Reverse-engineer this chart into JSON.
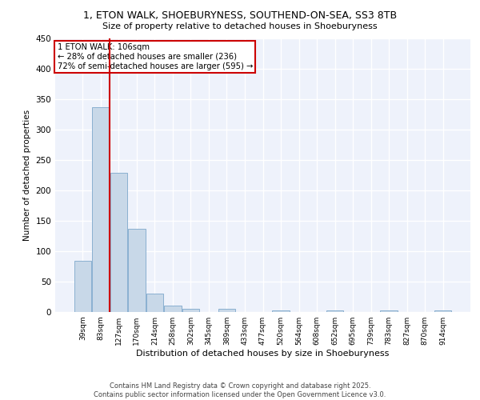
{
  "title_line1": "1, ETON WALK, SHOEBURYNESS, SOUTHEND-ON-SEA, SS3 8TB",
  "title_line2": "Size of property relative to detached houses in Shoeburyness",
  "xlabel": "Distribution of detached houses by size in Shoeburyness",
  "ylabel": "Number of detached properties",
  "categories": [
    "39sqm",
    "83sqm",
    "127sqm",
    "170sqm",
    "214sqm",
    "258sqm",
    "302sqm",
    "345sqm",
    "389sqm",
    "433sqm",
    "477sqm",
    "520sqm",
    "564sqm",
    "608sqm",
    "652sqm",
    "695sqm",
    "739sqm",
    "783sqm",
    "827sqm",
    "870sqm",
    "914sqm"
  ],
  "values": [
    84,
    337,
    229,
    136,
    30,
    10,
    5,
    0,
    5,
    0,
    0,
    3,
    0,
    0,
    3,
    0,
    0,
    3,
    0,
    0,
    3
  ],
  "bar_color": "#c8d8e8",
  "bar_edge_color": "#8ab0d0",
  "ylim": [
    0,
    450
  ],
  "yticks": [
    0,
    50,
    100,
    150,
    200,
    250,
    300,
    350,
    400,
    450
  ],
  "property_line_x": 1.5,
  "annotation_text": "1 ETON WALK: 106sqm\n← 28% of detached houses are smaller (236)\n72% of semi-detached houses are larger (595) →",
  "annotation_box_color": "#ffffff",
  "annotation_box_edge": "#cc0000",
  "property_line_color": "#cc0000",
  "background_color": "#eef2fb",
  "grid_color": "#ffffff",
  "footer_line1": "Contains HM Land Registry data © Crown copyright and database right 2025.",
  "footer_line2": "Contains public sector information licensed under the Open Government Licence v3.0."
}
